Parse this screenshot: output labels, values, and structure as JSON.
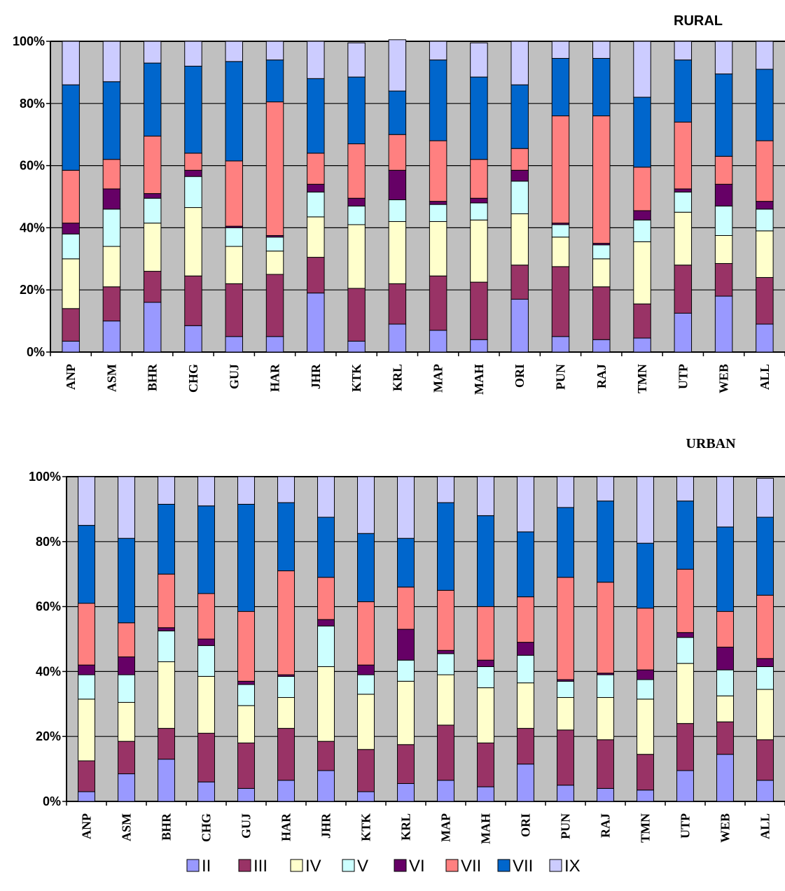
{
  "legend": [
    {
      "label": "II",
      "color": "#9999ff"
    },
    {
      "label": "III",
      "color": "#993366"
    },
    {
      "label": "IV",
      "color": "#ffffcc"
    },
    {
      "label": "V",
      "color": "#ccffff"
    },
    {
      "label": "VI",
      "color": "#660066"
    },
    {
      "label": "VII",
      "color": "#ff8080"
    },
    {
      "label": "VII",
      "color": "#0066cc"
    },
    {
      "label": "IX",
      "color": "#ccccff"
    }
  ],
  "chart_data": [
    {
      "type": "bar",
      "stacked": true,
      "title": "RURAL",
      "categories": [
        "ANP",
        "ASM",
        "BHR",
        "CHG",
        "GUJ",
        "HAR",
        "JHR",
        "KTK",
        "KRL",
        "MAP",
        "MAH",
        "ORI",
        "PUN",
        "RAJ",
        "TMN",
        "UTP",
        "WEB",
        "ALL"
      ],
      "yticks": [
        "0%",
        "20%",
        "40%",
        "60%",
        "80%",
        "100%"
      ],
      "ylim": [
        0,
        100
      ],
      "grid": true,
      "series": [
        {
          "name": "II",
          "values": [
            3.5,
            10,
            16,
            8.5,
            5,
            5,
            19,
            3.5,
            9,
            7,
            4,
            17,
            5,
            4,
            4.5,
            12.5,
            18,
            9
          ]
        },
        {
          "name": "III",
          "values": [
            10.5,
            11,
            10,
            16,
            17,
            20,
            11.5,
            17,
            13,
            17.5,
            18.5,
            11,
            22.5,
            17,
            11,
            15.5,
            10.5,
            15
          ]
        },
        {
          "name": "IV",
          "values": [
            16,
            13,
            15.5,
            22,
            12,
            7.5,
            13,
            20.5,
            20,
            17.5,
            20,
            16.5,
            9.5,
            9,
            20,
            17,
            9,
            15
          ]
        },
        {
          "name": "V",
          "values": [
            8,
            12,
            8,
            10,
            6,
            4.5,
            8,
            6,
            7,
            5.5,
            5.5,
            10.5,
            4,
            4.5,
            7,
            6.5,
            9.5,
            7
          ]
        },
        {
          "name": "VI",
          "values": [
            3.5,
            6.5,
            1.5,
            2,
            0.5,
            0.5,
            2.5,
            2.5,
            9.5,
            1,
            1.5,
            3.5,
            0.5,
            0.5,
            3,
            1,
            7,
            2.5
          ]
        },
        {
          "name": "VII",
          "values": [
            17,
            9.5,
            18.5,
            5.5,
            21,
            43,
            10,
            17.5,
            11.5,
            19.5,
            12.5,
            7,
            34.5,
            41,
            14,
            21.5,
            9,
            19.5
          ]
        },
        {
          "name": "VII",
          "values": [
            27.5,
            25,
            23.5,
            28,
            32,
            13.5,
            24,
            21.5,
            14,
            26,
            26.5,
            20.5,
            18.5,
            18.5,
            22.5,
            20,
            26.5,
            23
          ]
        },
        {
          "name": "IX",
          "values": [
            14,
            13,
            7,
            8,
            6.5,
            6,
            12,
            11,
            16.5,
            6,
            11,
            14,
            5.5,
            5.5,
            18,
            6,
            10.5,
            9
          ]
        }
      ]
    },
    {
      "type": "bar",
      "stacked": true,
      "title": "URBAN",
      "categories": [
        "ANP",
        "ASM",
        "BHR",
        "CHG",
        "GUJ",
        "HAR",
        "JHR",
        "KTK",
        "KRL",
        "MAP",
        "MAH",
        "ORI",
        "PUN",
        "RAJ",
        "TMN",
        "UTP",
        "WEB",
        "ALL"
      ],
      "yticks": [
        "0%",
        "20%",
        "40%",
        "60%",
        "80%",
        "100%"
      ],
      "ylim": [
        0,
        100
      ],
      "grid": true,
      "series": [
        {
          "name": "II",
          "values": [
            3,
            8.5,
            13,
            6,
            4,
            6.5,
            9.5,
            3,
            5.5,
            6.5,
            4.5,
            11.5,
            5,
            4,
            3.5,
            9.5,
            14.5,
            6.5
          ]
        },
        {
          "name": "III",
          "values": [
            9.5,
            10,
            9.5,
            15,
            14,
            16,
            9,
            13,
            12,
            17,
            13.5,
            11,
            17,
            15,
            11,
            14.5,
            10,
            12.5
          ]
        },
        {
          "name": "IV",
          "values": [
            19,
            12,
            20.5,
            17.5,
            11.5,
            9.5,
            23,
            17,
            19.5,
            15.5,
            17,
            14,
            10,
            13,
            17,
            18.5,
            8,
            15.5
          ]
        },
        {
          "name": "V",
          "values": [
            7.5,
            8.5,
            9.5,
            9.5,
            6.5,
            6.5,
            12.5,
            6,
            6.5,
            6.5,
            6.5,
            8.5,
            5,
            7,
            6,
            8,
            8,
            7
          ]
        },
        {
          "name": "VI",
          "values": [
            3,
            5.5,
            1,
            2,
            1,
            0.5,
            2,
            3,
            9.5,
            1,
            2,
            4,
            0.5,
            0.5,
            3,
            1.5,
            7,
            2.5
          ]
        },
        {
          "name": "VII",
          "values": [
            19,
            10.5,
            16.5,
            14,
            21.5,
            32,
            13,
            19.5,
            13,
            18.5,
            16.5,
            14,
            31.5,
            28,
            19,
            19.5,
            11,
            19.5
          ]
        },
        {
          "name": "VII",
          "values": [
            24,
            26,
            21.5,
            27,
            33,
            21,
            18.5,
            21,
            15,
            27,
            28,
            20,
            21.5,
            25,
            20,
            21,
            26,
            24
          ]
        },
        {
          "name": "IX",
          "values": [
            15,
            19,
            8.5,
            9,
            8.5,
            8,
            12.5,
            17.5,
            19,
            8,
            12,
            17,
            9.5,
            7.5,
            20.5,
            7.5,
            15.5,
            12
          ]
        }
      ]
    }
  ]
}
